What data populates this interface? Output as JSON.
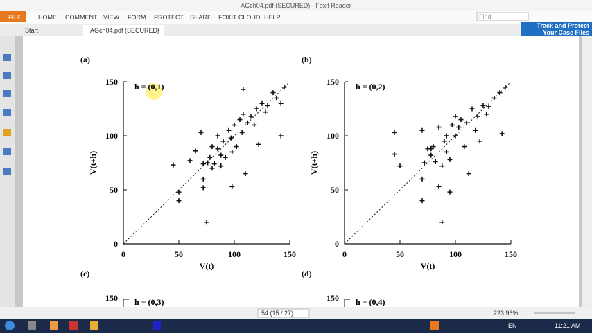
{
  "window": {
    "title": "AGch04.pdf (SECURED) - Foxit Reader",
    "menu": [
      "FILE",
      "HOME",
      "COMMENT",
      "VIEW",
      "FORM",
      "PROTECT",
      "SHARE",
      "FOXIT CLOUD",
      "HELP"
    ],
    "find": "Find",
    "tabs": [
      "Start",
      "AGch04.pdf (SECURED)"
    ],
    "ad": [
      "Track and Protect",
      "Your Case Files"
    ]
  },
  "document": {
    "lower_panels": [
      "(c)",
      "(d)"
    ],
    "lower_tick": "150",
    "lower_annotations": [
      "h = (0,3)",
      "h = (0,4)"
    ]
  },
  "status": {
    "page": "54 (15 / 27)",
    "zoom": "223.96%"
  },
  "taskbar": {
    "language": "EN",
    "time": "11:21 AM"
  },
  "chart_data": [
    {
      "type": "scatter",
      "panel": "(a)",
      "annotation": "h = (0,1)",
      "xlabel": "V(t)",
      "ylabel": "V(t+h)",
      "color": "#111111",
      "xlim": [
        0,
        150
      ],
      "ylim": [
        0,
        150
      ],
      "xticks": [
        0,
        50,
        100,
        150
      ],
      "yticks": [
        0,
        50,
        100,
        150
      ],
      "x": [
        45,
        50,
        50,
        60,
        65,
        70,
        72,
        72,
        72,
        75,
        76,
        78,
        80,
        82,
        85,
        85,
        88,
        90,
        92,
        95,
        97,
        98,
        100,
        102,
        105,
        107,
        108,
        110,
        112,
        115,
        118,
        120,
        122,
        125,
        128,
        130,
        135,
        138,
        142,
        145,
        142,
        108,
        98,
        88,
        80
      ],
      "y": [
        73,
        48,
        40,
        77,
        86,
        103,
        74,
        60,
        52,
        20,
        75,
        80,
        90,
        74,
        88,
        100,
        72,
        95,
        80,
        105,
        98,
        53,
        110,
        90,
        115,
        103,
        120,
        65,
        112,
        118,
        110,
        125,
        92,
        130,
        122,
        128,
        140,
        135,
        130,
        145,
        100,
        143,
        85,
        82,
        70
      ]
    },
    {
      "type": "scatter",
      "panel": "(b)",
      "annotation": "h = (0,2)",
      "xlabel": "V(t)",
      "ylabel": "V(t+h)",
      "color": "#111111",
      "xlim": [
        0,
        150
      ],
      "ylim": [
        0,
        150
      ],
      "xticks": [
        0,
        50,
        100,
        150
      ],
      "yticks": [
        0,
        50,
        100,
        150
      ],
      "x": [
        45,
        45,
        50,
        70,
        72,
        70,
        70,
        75,
        78,
        80,
        82,
        85,
        88,
        88,
        90,
        92,
        95,
        95,
        97,
        100,
        100,
        103,
        105,
        108,
        110,
        112,
        115,
        118,
        120,
        122,
        125,
        128,
        130,
        135,
        140,
        142,
        145,
        85,
        78,
        92
      ],
      "y": [
        103,
        83,
        72,
        105,
        75,
        60,
        40,
        88,
        82,
        90,
        76,
        53,
        20,
        72,
        95,
        85,
        48,
        78,
        110,
        100,
        118,
        108,
        115,
        90,
        112,
        65,
        125,
        105,
        118,
        95,
        128,
        120,
        127,
        135,
        140,
        102,
        145,
        108,
        88,
        100
      ]
    }
  ]
}
